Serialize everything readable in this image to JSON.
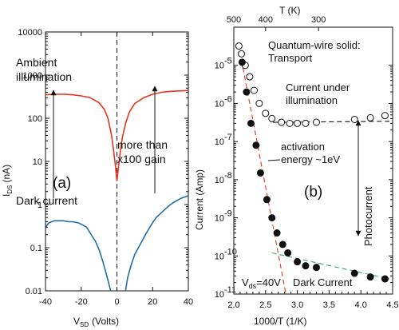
{
  "chart_data": [
    {
      "type": "line",
      "panel_label": "(a)",
      "xlabel_main": "V",
      "xlabel_sub": "SD",
      "xlabel_unit": "(Volts)",
      "ylabel_main": "I",
      "ylabel_sub": "DS",
      "ylabel_unit": "(nA)",
      "xlim": [
        -40,
        40
      ],
      "ylim": [
        0.01,
        10000
      ],
      "yscale": "log",
      "x_ticks": [
        -40,
        -20,
        0,
        20,
        40
      ],
      "x_tick_labels": [
        "-40",
        "-20",
        "0",
        "20",
        "40"
      ],
      "y_ticks": [
        0.01,
        0.1,
        1,
        10,
        100,
        1000,
        10000
      ],
      "y_tick_labels": [
        "0.01",
        "0.1",
        "1",
        "10",
        "100",
        "1000",
        "10000"
      ],
      "dashed_vline_x": 0,
      "series": [
        {
          "name": "Ambient illumination",
          "color": "#e8341c",
          "x": [
            -40,
            -35,
            -30,
            -25,
            -20,
            -15,
            -10,
            -7,
            -5,
            -3,
            -2,
            -1,
            0,
            1,
            2,
            3,
            5,
            7,
            10,
            15,
            20,
            25,
            30,
            35,
            40
          ],
          "y": [
            350,
            360,
            360,
            350,
            330,
            300,
            230,
            160,
            100,
            40,
            20,
            9,
            3.5,
            8,
            18,
            35,
            80,
            140,
            220,
            300,
            360,
            400,
            420,
            430,
            440
          ]
        },
        {
          "name": "Dark current",
          "color": "#1f6ea5",
          "x": [
            -40,
            -38,
            -35,
            -32,
            -30,
            -27,
            -25,
            -22,
            -20,
            -17,
            -15,
            -12,
            -10,
            -8,
            -6,
            -4,
            -2,
            4,
            6,
            8,
            10,
            12,
            14,
            16,
            18,
            20,
            22,
            25,
            28,
            30,
            33,
            36,
            38,
            40
          ],
          "y": [
            0.3,
            0.38,
            0.42,
            0.42,
            0.42,
            0.4,
            0.4,
            0.38,
            0.35,
            0.3,
            0.22,
            0.14,
            0.09,
            0.05,
            0.025,
            0.012,
            0.006,
            0.006,
            0.02,
            0.04,
            0.07,
            0.1,
            0.14,
            0.2,
            0.28,
            0.38,
            0.5,
            0.65,
            0.85,
            1.0,
            1.2,
            1.4,
            1.5,
            1.6
          ]
        }
      ],
      "annotations": {
        "ambient_line1": "Ambient",
        "ambient_line2": "illumination",
        "gain_line1": "more than",
        "gain_line2": "x100 gain",
        "dark_label": "Dark current",
        "panel": "(a)"
      }
    },
    {
      "type": "scatter",
      "panel_label": "(b)",
      "xlabel": "1000/T (1/K)",
      "ylabel": "Current (Amp)",
      "top_xlabel": "T (K)",
      "xlim": [
        2.0,
        4.5
      ],
      "ylim": [
        1e-11,
        0.0001
      ],
      "yscale": "log",
      "x_ticks": [
        2.0,
        2.5,
        3.0,
        3.5,
        4.0,
        4.5
      ],
      "x_tick_labels": [
        "2.0",
        "2.5",
        "3.0",
        "3.5",
        "4.0",
        "4.5"
      ],
      "y_tick_exponents": [
        -11,
        -10,
        -9,
        -8,
        -7,
        -6,
        -5
      ],
      "y_tick_labels": [
        "10",
        "10",
        "10",
        "10",
        "10",
        "10",
        "10"
      ],
      "y_tick_exps": [
        "-11",
        "-10",
        "-9",
        "-8",
        "-7",
        "-6",
        "-5"
      ],
      "top_ticks": [
        {
          "T": 500,
          "label": "500"
        },
        {
          "T": 400,
          "label": "400"
        },
        {
          "T": 300,
          "label": "300"
        }
      ],
      "series": [
        {
          "name": "Current under illumination",
          "marker": "open-circle",
          "x": [
            2.08,
            2.12,
            2.18,
            2.25,
            2.32,
            2.4,
            2.5,
            2.6,
            2.75,
            2.88,
            3.0,
            3.13,
            3.3,
            3.9,
            4.15,
            4.38
          ],
          "y": [
            3.2e-05,
            2e-05,
            1e-05,
            5e-06,
            2.2e-06,
            1e-06,
            5.5e-07,
            4e-07,
            3.2e-07,
            3e-07,
            3e-07,
            3e-07,
            3.2e-07,
            3.8e-07,
            4.2e-07,
            4.8e-07
          ]
        },
        {
          "name": "Dark Current",
          "marker": "filled-circle",
          "x": [
            2.13,
            2.2,
            2.27,
            2.35,
            2.42,
            2.52,
            2.6,
            2.68,
            2.77,
            2.85,
            3.0,
            3.13,
            3.3,
            3.9,
            4.15,
            4.38
          ],
          "y": [
            1.2e-05,
            2e-06,
            3e-07,
            8e-08,
            1.5e-08,
            3e-09,
            1e-09,
            4e-10,
            2e-10,
            1.2e-10,
            7e-11,
            5.5e-11,
            5e-11,
            3.5e-11,
            2.8e-11,
            2.5e-11
          ]
        }
      ],
      "fit_lines": [
        {
          "color": "#e8341c",
          "style": "dashed",
          "x": [
            2.12,
            2.82
          ],
          "y": [
            1.4e-05,
            1e-11
          ]
        },
        {
          "color": "#3aa870",
          "style": "dashed",
          "x": [
            2.6,
            4.45
          ],
          "y": [
            1.2e-10,
            2.5e-11
          ]
        },
        {
          "color": "#111111",
          "style": "dashed",
          "x": [
            2.62,
            4.45
          ],
          "y": [
            3.2e-07,
            3.4e-07
          ]
        }
      ],
      "annotations": {
        "title_line1": "Quantum-wire solid:",
        "title_line2": "Transport",
        "illum_line1": "Current under",
        "illum_line2": "illumination",
        "activation_line1": "activation",
        "activation_line2": "energy ~1eV",
        "photocurrent": "Photocurrent",
        "vds_main": "V",
        "vds_sub": "ds",
        "vds_value": "=40V",
        "dark": "Dark Current",
        "panel": "(b)"
      }
    }
  ]
}
